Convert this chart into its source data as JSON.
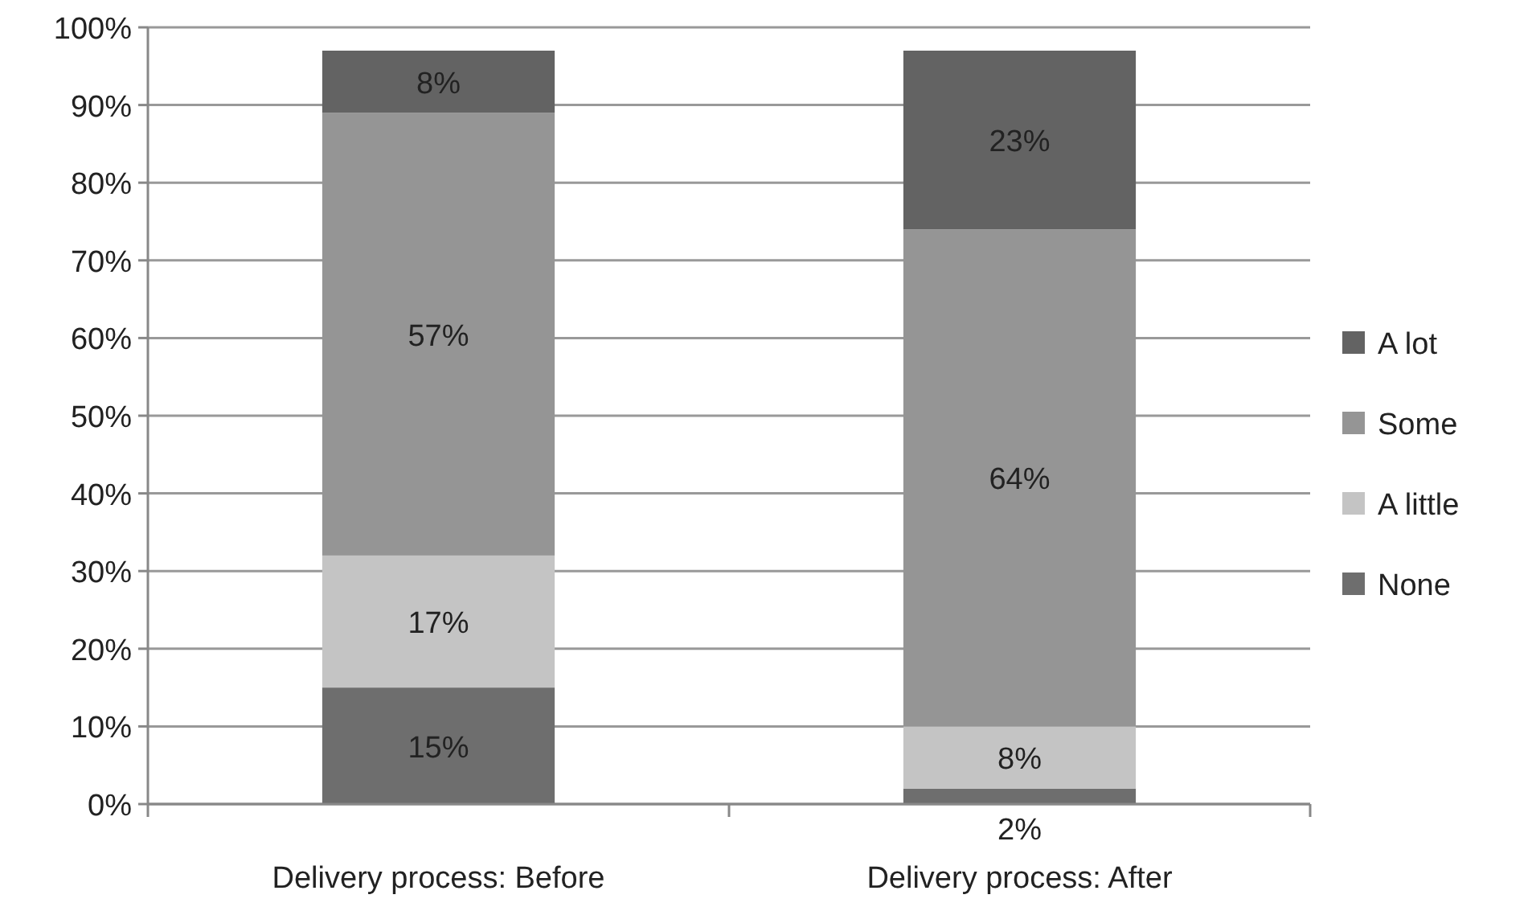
{
  "chart_data": {
    "type": "bar",
    "stacked": true,
    "categories": [
      "Delivery process: Before",
      "Delivery process: After"
    ],
    "series": [
      {
        "name": "None",
        "color": "#6e6e6e",
        "values": [
          15,
          2
        ],
        "value_labels": [
          "15%",
          "2%"
        ]
      },
      {
        "name": "A little",
        "color": "#c4c4c4",
        "values": [
          17,
          8
        ],
        "value_labels": [
          "17%",
          "8%"
        ]
      },
      {
        "name": "Some",
        "color": "#959595",
        "values": [
          57,
          64
        ],
        "value_labels": [
          "57%",
          "64%"
        ]
      },
      {
        "name": "A lot",
        "color": "#636363",
        "values": [
          8,
          23
        ],
        "value_labels": [
          "8%",
          "23%"
        ]
      }
    ],
    "ylim": [
      0,
      100
    ],
    "yticks": [
      {
        "value": 0,
        "label": "0%"
      },
      {
        "value": 10,
        "label": "10%"
      },
      {
        "value": 20,
        "label": "20%"
      },
      {
        "value": 30,
        "label": "30%"
      },
      {
        "value": 40,
        "label": "40%"
      },
      {
        "value": 50,
        "label": "50%"
      },
      {
        "value": 60,
        "label": "60%"
      },
      {
        "value": 70,
        "label": "70%"
      },
      {
        "value": 80,
        "label": "80%"
      },
      {
        "value": 90,
        "label": "90%"
      },
      {
        "value": 100,
        "label": "100%"
      }
    ],
    "grid": "y",
    "legend": "right"
  }
}
